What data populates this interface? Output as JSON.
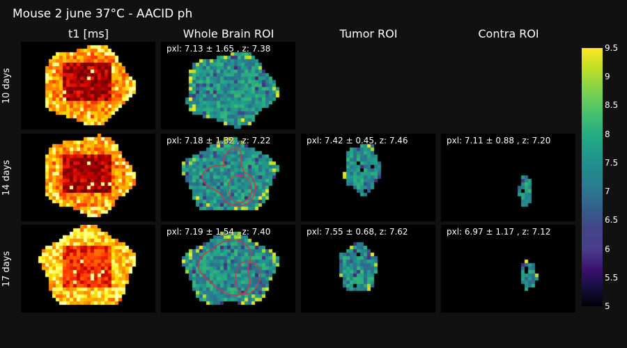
{
  "title": "Mouse 2 june 37°C - AACID ph",
  "chart_data": {
    "type": "heatmap",
    "title": "Mouse 2 june 37°C - AACID ph",
    "columns": [
      "t1 [ms]",
      "Whole Brain ROI",
      "Tumor ROI",
      "Contra ROI"
    ],
    "rows": [
      "10 days",
      "14 days",
      "17 days"
    ],
    "panels": [
      {
        "row": "10 days",
        "column": "Whole Brain ROI",
        "annotation": "pxl: 7.13 ± 1.65 , z: 7.38",
        "mean": 7.13,
        "std": 1.65,
        "z": 7.38
      },
      {
        "row": "14 days",
        "column": "Whole Brain ROI",
        "annotation": "pxl: 7.18 ± 1.32 , z: 7.22",
        "mean": 7.18,
        "std": 1.32,
        "z": 7.22
      },
      {
        "row": "14 days",
        "column": "Tumor ROI",
        "annotation": "pxl: 7.42 ± 0.45, z: 7.46",
        "mean": 7.42,
        "std": 0.45,
        "z": 7.46
      },
      {
        "row": "14 days",
        "column": "Contra ROI",
        "annotation": "pxl: 7.11 ± 0.88 , z: 7.20",
        "mean": 7.11,
        "std": 0.88,
        "z": 7.2
      },
      {
        "row": "17 days",
        "column": "Whole Brain ROI",
        "annotation": "pxl: 7.19 ± 1.54 , z: 7.40",
        "mean": 7.19,
        "std": 1.54,
        "z": 7.4
      },
      {
        "row": "17 days",
        "column": "Tumor ROI",
        "annotation": "pxl: 7.55 ± 0.68, z: 7.62",
        "mean": 7.55,
        "std": 0.68,
        "z": 7.62
      },
      {
        "row": "17 days",
        "column": "Contra ROI",
        "annotation": "pxl: 6.97 ± 1.17 , z: 7.12",
        "mean": 6.97,
        "std": 1.17,
        "z": 7.12
      }
    ],
    "colorbar": {
      "range": [
        5,
        9.5
      ],
      "ticks": [
        "9.5",
        "9",
        "8.5",
        "8",
        "7.5",
        "7",
        "6.5",
        "6",
        "5.5",
        "5"
      ],
      "colorscale": "viridis"
    },
    "colors": {
      "background": "#111111",
      "panel": "#000000",
      "contour": "#c83a4a"
    }
  }
}
